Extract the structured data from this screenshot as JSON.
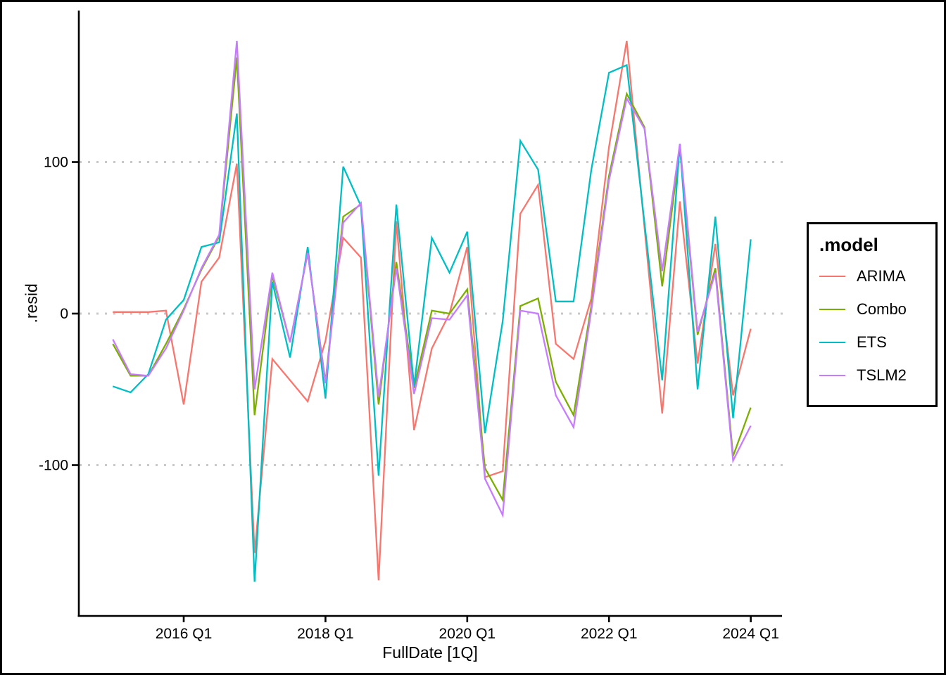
{
  "figure": {
    "background": "#FFFFFF",
    "frame_border_color": "#000000",
    "axis_color": "#000000",
    "grid_color": "#C9C9C9",
    "text_color": "#000000",
    "xlabel": "FullDate [1Q]",
    "ylabel": ".resid"
  },
  "legend": {
    "title": ".model",
    "items": [
      {
        "label": "ARIMA",
        "color": "#F8766D"
      },
      {
        "label": "Combo",
        "color": "#7CAE00"
      },
      {
        "label": "ETS",
        "color": "#00BFC4"
      },
      {
        "label": "TSLM2",
        "color": "#C77CFF"
      }
    ]
  },
  "chart_data": {
    "type": "line",
    "title": "",
    "xlabel": "FullDate [1Q]",
    "ylabel": ".resid",
    "legend_title": ".model",
    "legend_position": "right",
    "grid": "horizontal-dotted",
    "ylim": [
      -190,
      190
    ],
    "y_ticks": [
      100,
      0,
      -100
    ],
    "y_tick_labels": [
      "100",
      "0",
      "-100"
    ],
    "x_tick_labels": [
      "2016 Q1",
      "2018 Q1",
      "2020 Q1",
      "2022 Q1",
      "2024 Q1"
    ],
    "x_tick_indices": [
      4,
      12,
      20,
      28,
      36
    ],
    "x": [
      "2015 Q1",
      "2015 Q2",
      "2015 Q3",
      "2015 Q4",
      "2016 Q1",
      "2016 Q2",
      "2016 Q3",
      "2016 Q4",
      "2017 Q1",
      "2017 Q2",
      "2017 Q3",
      "2017 Q4",
      "2018 Q1",
      "2018 Q2",
      "2018 Q3",
      "2018 Q4",
      "2019 Q1",
      "2019 Q2",
      "2019 Q3",
      "2019 Q4",
      "2020 Q1",
      "2020 Q2",
      "2020 Q3",
      "2020 Q4",
      "2021 Q1",
      "2021 Q2",
      "2021 Q3",
      "2021 Q4",
      "2022 Q1",
      "2022 Q2",
      "2022 Q3",
      "2022 Q4",
      "2023 Q1",
      "2023 Q2",
      "2023 Q3",
      "2023 Q4",
      "2024 Q1"
    ],
    "series": [
      {
        "name": "ARIMA",
        "color": "#F8766D",
        "values": [
          1,
          1,
          1,
          2,
          -60,
          21,
          37,
          99,
          -158,
          -30,
          -44,
          -58,
          -18,
          50,
          37,
          -176,
          61,
          -77,
          -23,
          0,
          44,
          -108,
          -104,
          66,
          85,
          -20,
          -30,
          10,
          110,
          180,
          57,
          -66,
          74,
          -33,
          46,
          -54,
          -10
        ]
      },
      {
        "name": "Combo",
        "color": "#7CAE00",
        "values": [
          -20,
          -41,
          -41,
          -20,
          3,
          29,
          51,
          169,
          -67,
          25,
          -19,
          40,
          -45,
          64,
          72,
          -60,
          34,
          -49,
          2,
          0,
          16,
          -102,
          -123,
          5,
          10,
          -45,
          -67,
          5,
          91,
          145,
          123,
          18,
          109,
          -14,
          30,
          -94,
          -62
        ]
      },
      {
        "name": "ETS",
        "color": "#00BFC4",
        "values": [
          -48,
          -52,
          -40,
          -4,
          9,
          44,
          47,
          132,
          -177,
          21,
          -29,
          44,
          -56,
          97,
          71,
          -107,
          72,
          -48,
          50,
          27,
          54,
          -79,
          -5,
          114,
          95,
          8,
          8,
          95,
          159,
          164,
          60,
          -44,
          112,
          -50,
          64,
          -69,
          49
        ]
      },
      {
        "name": "TSLM2",
        "color": "#C77CFF",
        "values": [
          -17,
          -40,
          -41,
          -23,
          2,
          30,
          52,
          180,
          -50,
          27,
          -19,
          40,
          -46,
          60,
          73,
          -55,
          30,
          -53,
          -3,
          -4,
          12,
          -109,
          -133,
          2,
          0,
          -54,
          -75,
          2,
          88,
          142,
          122,
          28,
          112,
          -12,
          27,
          -97,
          -74
        ]
      }
    ]
  }
}
